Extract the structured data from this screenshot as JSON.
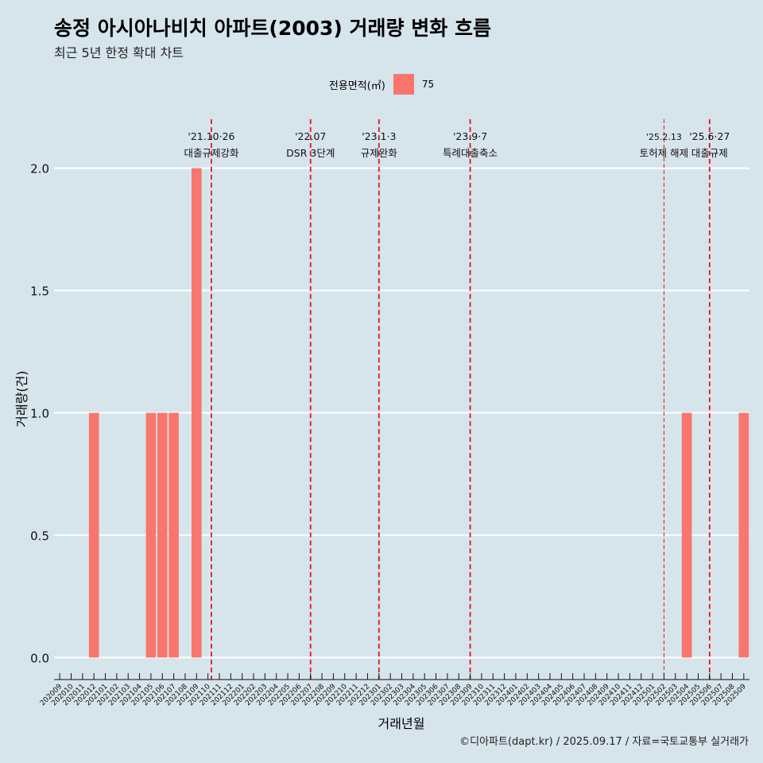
{
  "title": "송정 아시아나비치 아파트(2003) 거래량 변화 흐름",
  "subtitle": "최근 5년 한정 확대 차트",
  "legend": {
    "title": "전용면적(㎡)",
    "label": "75",
    "color": "#f8766d"
  },
  "caption": "©디아파트(dapt.kr) / 2025.09.17 / 자료=국토교통부 실거래가",
  "chart_data": {
    "type": "bar",
    "xlabel": "거래년월",
    "ylabel": "거래량(건)",
    "ylim": [
      -0.09,
      2.2
    ],
    "yticks": [
      0.0,
      0.5,
      1.0,
      1.5,
      2.0
    ],
    "ytick_labels": [
      "0.0",
      "0.5",
      "1.0",
      "1.5",
      "2.0"
    ],
    "grid": "horizontal",
    "legend_position": "top",
    "categories": [
      "202009",
      "202010",
      "202011",
      "202012",
      "202101",
      "202102",
      "202103",
      "202104",
      "202105",
      "202106",
      "202107",
      "202108",
      "202109",
      "202110",
      "202111",
      "202112",
      "202201",
      "202202",
      "202203",
      "202204",
      "202205",
      "202206",
      "202207",
      "202208",
      "202209",
      "202210",
      "202211",
      "202212",
      "202301",
      "202302",
      "202303",
      "202304",
      "202305",
      "202306",
      "202307",
      "202308",
      "202309",
      "202310",
      "202311",
      "202312",
      "202401",
      "202402",
      "202403",
      "202404",
      "202405",
      "202406",
      "202407",
      "202408",
      "202409",
      "202410",
      "202411",
      "202412",
      "202501",
      "202502",
      "202503",
      "202504",
      "202505",
      "202506",
      "202507",
      "202508",
      "202509"
    ],
    "series": [
      {
        "name": "75",
        "color": "#f8766d",
        "values": [
          0,
          0,
          0,
          1,
          0,
          0,
          0,
          0,
          1,
          1,
          1,
          0,
          2,
          0,
          0,
          0,
          0,
          0,
          0,
          0,
          0,
          0,
          0,
          0,
          0,
          0,
          0,
          0,
          0,
          0,
          0,
          0,
          0,
          0,
          0,
          0,
          0,
          0,
          0,
          0,
          0,
          0,
          0,
          0,
          0,
          0,
          0,
          0,
          0,
          0,
          0,
          0,
          0,
          0,
          0,
          1,
          0,
          0,
          0,
          0,
          1
        ]
      }
    ],
    "annotations": [
      {
        "date_label": "'21.10·26",
        "text": "대출규제강화",
        "x": "202110",
        "offset": 0.3,
        "style": "dashed",
        "color": "#e8141c"
      },
      {
        "date_label": "'22.07",
        "text": "DSR 3단계",
        "x": "202207",
        "offset": 0.0,
        "style": "dashed",
        "color": "#e8141c"
      },
      {
        "date_label": "'23.1·3",
        "text": "규제완화",
        "x": "202301",
        "offset": 0.0,
        "style": "dashed",
        "color": "#e8141c"
      },
      {
        "date_label": "'23.9·7",
        "text": "특례대출축소",
        "x": "202309",
        "offset": 0.0,
        "style": "dashed",
        "color": "#e8141c"
      },
      {
        "date_label": "'25.2.13",
        "text": "토허제 해제",
        "x": "202502",
        "offset": 0.0,
        "style": "thin-dashed",
        "color": "#e8141c"
      },
      {
        "date_label": "'25.6·27",
        "text": "대출규제",
        "x": "202506",
        "offset": 0.0,
        "style": "dashed",
        "color": "#e8141c"
      }
    ]
  }
}
